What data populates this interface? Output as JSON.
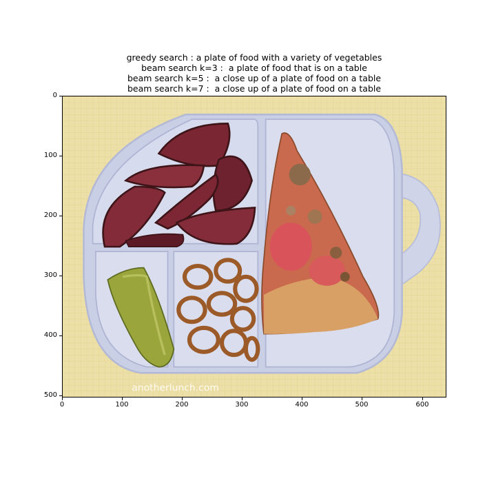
{
  "captions": [
    "greedy search : a plate of food with a variety of vegetables",
    "beam search k=3 :  a plate of food that is on a table",
    "beam search k=5 :  a close up of a plate of food on a table",
    "beam search k=7 :  a close up of a plate of food on a table"
  ],
  "image": {
    "watermark": "anotherlunch.com",
    "background_color": "#ece0a8",
    "tray_color": "#cdd2e6"
  },
  "axes": {
    "x_ticks": [
      "0",
      "100",
      "200",
      "300",
      "400",
      "500",
      "600"
    ],
    "y_ticks": [
      "0",
      "100",
      "200",
      "300",
      "400",
      "500"
    ],
    "x_range": [
      0,
      640
    ],
    "y_range": [
      0,
      502
    ]
  }
}
